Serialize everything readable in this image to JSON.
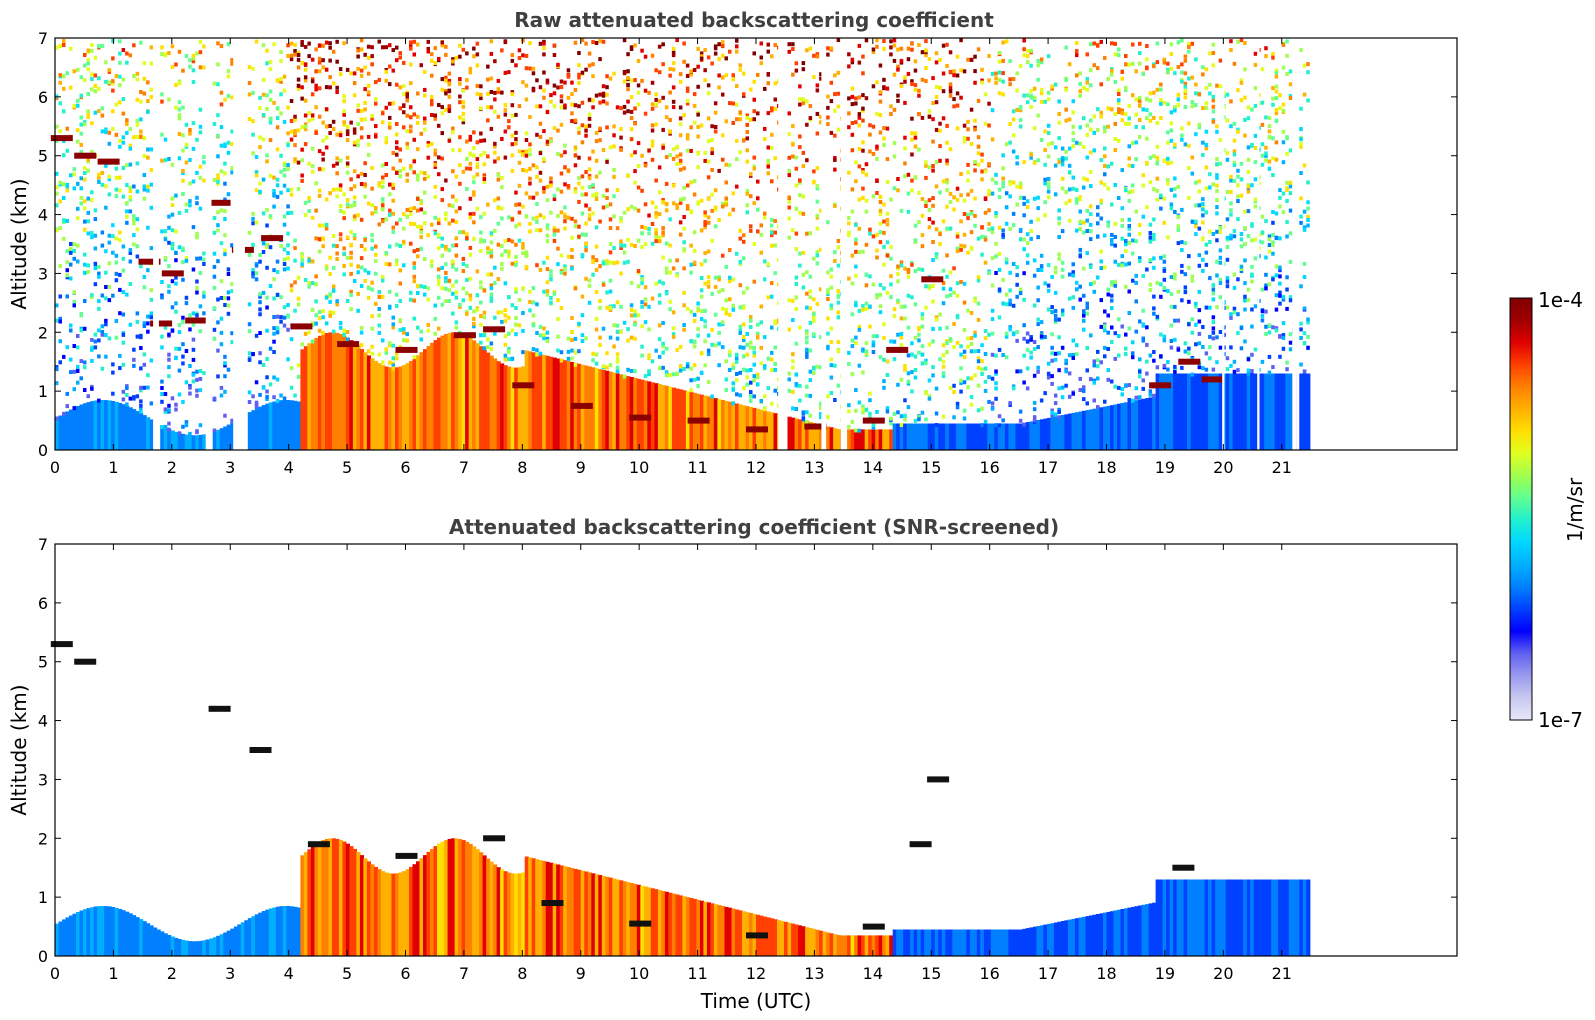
{
  "chart_data": [
    {
      "type": "heatmap",
      "title": "Raw attenuated backscattering coefficient",
      "xlabel": "",
      "ylabel": "Altitude (km)",
      "xlim": [
        0,
        24
      ],
      "ylim": [
        0,
        7
      ],
      "x_ticks": [
        "0",
        "1",
        "2",
        "3",
        "4",
        "5",
        "6",
        "7",
        "8",
        "9",
        "10",
        "11",
        "12",
        "13",
        "14",
        "15",
        "16",
        "17",
        "18",
        "19",
        "20",
        "21"
      ],
      "y_ticks": [
        "0",
        "1",
        "2",
        "3",
        "4",
        "5",
        "6",
        "7"
      ],
      "data_end_time": 21.45,
      "data_gaps": [
        [
          1.68,
          1.78
        ],
        [
          2.58,
          2.68
        ],
        [
          3.05,
          3.25
        ],
        [
          12.38,
          12.52
        ],
        [
          13.12,
          13.2
        ],
        [
          13.45,
          13.52
        ],
        [
          19.98,
          20.02
        ],
        [
          20.58,
          20.62
        ],
        [
          21.18,
          21.25
        ]
      ],
      "cloud_base_heights": [
        {
          "time": 0.1,
          "height": 5.3
        },
        {
          "time": 0.5,
          "height": 5.0
        },
        {
          "time": 0.9,
          "height": 4.9
        },
        {
          "time": 1.6,
          "height": 3.2
        },
        {
          "time": 2.0,
          "height": 3.0
        },
        {
          "time": 1.8,
          "height": 2.15
        },
        {
          "time": 2.4,
          "height": 2.2
        },
        {
          "time": 2.8,
          "height": 4.2
        },
        {
          "time": 3.2,
          "height": 3.4
        },
        {
          "time": 3.7,
          "height": 3.6
        },
        {
          "time": 4.2,
          "height": 2.1
        },
        {
          "time": 5.0,
          "height": 1.8
        },
        {
          "time": 6.0,
          "height": 1.7
        },
        {
          "time": 7.0,
          "height": 1.95
        },
        {
          "time": 7.5,
          "height": 2.05
        },
        {
          "time": 8.0,
          "height": 1.1
        },
        {
          "time": 9.0,
          "height": 0.75
        },
        {
          "time": 10.0,
          "height": 0.55
        },
        {
          "time": 11.0,
          "height": 0.5
        },
        {
          "time": 12.0,
          "height": 0.35
        },
        {
          "time": 13.0,
          "height": 0.4
        },
        {
          "time": 14.0,
          "height": 0.5
        },
        {
          "time": 14.4,
          "height": 1.7
        },
        {
          "time": 15.0,
          "height": 2.9
        },
        {
          "time": 18.9,
          "height": 1.1
        },
        {
          "time": 19.4,
          "height": 1.5
        },
        {
          "time": 19.8,
          "height": 1.2
        }
      ]
    },
    {
      "type": "heatmap",
      "title": "Attenuated backscattering coefficient (SNR-screened)",
      "xlabel": "Time (UTC)",
      "ylabel": "Altitude (km)",
      "xlim": [
        0,
        24
      ],
      "ylim": [
        0,
        7
      ],
      "x_ticks": [
        "0",
        "1",
        "2",
        "3",
        "4",
        "5",
        "6",
        "7",
        "8",
        "9",
        "10",
        "11",
        "12",
        "13",
        "14",
        "15",
        "16",
        "17",
        "18",
        "19",
        "20",
        "21"
      ],
      "y_ticks": [
        "0",
        "1",
        "2",
        "3",
        "4",
        "5",
        "6",
        "7"
      ],
      "data_end_time": 21.45,
      "cloud_base_heights": [
        {
          "time": 0.1,
          "height": 5.3
        },
        {
          "time": 0.5,
          "height": 5.0
        },
        {
          "time": 2.8,
          "height": 4.2
        },
        {
          "time": 3.5,
          "height": 3.5
        },
        {
          "time": 4.5,
          "height": 1.9
        },
        {
          "time": 6.0,
          "height": 1.7
        },
        {
          "time": 7.5,
          "height": 2.0
        },
        {
          "time": 8.5,
          "height": 0.9
        },
        {
          "time": 10.0,
          "height": 0.55
        },
        {
          "time": 12.0,
          "height": 0.35
        },
        {
          "time": 14.0,
          "height": 0.5
        },
        {
          "time": 14.8,
          "height": 1.9
        },
        {
          "time": 15.1,
          "height": 3.0
        },
        {
          "time": 19.3,
          "height": 1.5
        }
      ]
    }
  ],
  "colorbar": {
    "label": "1/m/sr",
    "max_label": "1e-4",
    "min_label": "1e-7",
    "colors": [
      "#e8e8f8",
      "#c8c8f0",
      "#9a9af0",
      "#6060f0",
      "#0000ff",
      "#0040ff",
      "#0080ff",
      "#00b0ff",
      "#00d8ff",
      "#20f0d0",
      "#60ff90",
      "#a0ff50",
      "#e0ff20",
      "#ffe000",
      "#ffb000",
      "#ff8000",
      "#ff4000",
      "#e00000",
      "#a00000",
      "#800000"
    ]
  }
}
